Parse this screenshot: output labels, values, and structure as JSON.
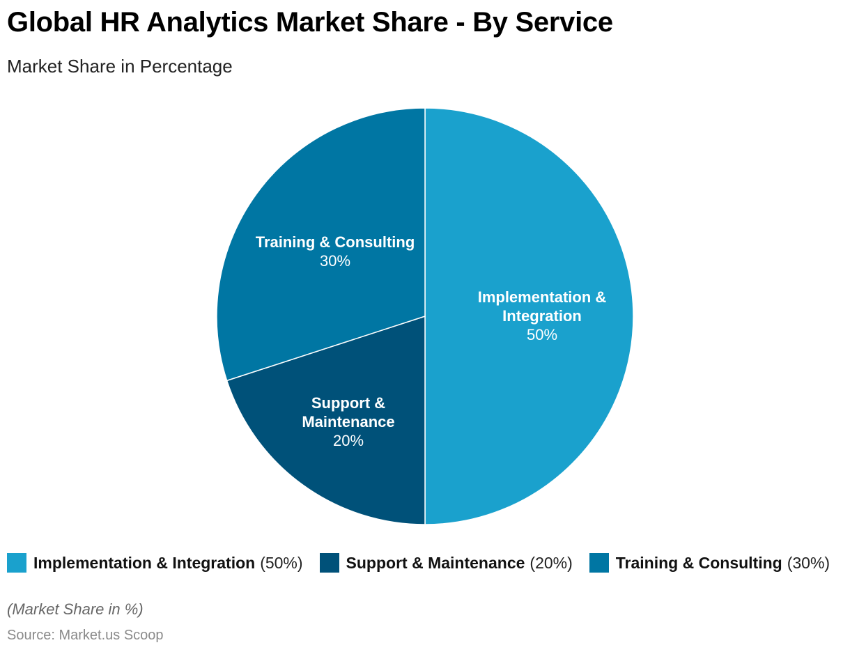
{
  "chart_data": {
    "type": "pie",
    "title": "Global HR Analytics Market Share - By Service",
    "subtitle": "Market Share in Percentage",
    "slices": [
      {
        "name": "Implementation & Integration",
        "label_lines": [
          "Implementation &",
          "Integration"
        ],
        "value": 50,
        "value_label": "50%",
        "legend_value": "(50%)",
        "color": "#1aa1cd"
      },
      {
        "name": "Support & Maintenance",
        "label_lines": [
          "Support &",
          "Maintenance"
        ],
        "value": 20,
        "value_label": "20%",
        "legend_value": "(20%)",
        "color": "#005179"
      },
      {
        "name": "Training & Consulting",
        "label_lines": [
          "Training & Consulting"
        ],
        "value": 30,
        "value_label": "30%",
        "legend_value": "(30%)",
        "color": "#0076a3"
      }
    ],
    "legend_position": "bottom",
    "note": "(Market Share in %)",
    "source": "Source: Market.us Scoop"
  }
}
